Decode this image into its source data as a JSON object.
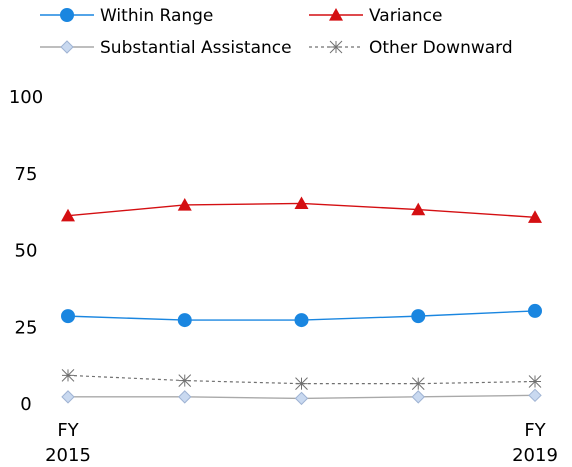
{
  "chart_data": {
    "type": "line",
    "title": "",
    "xlabel": "",
    "ylabel": "",
    "categories": [
      [
        "FY",
        "2015"
      ],
      [
        "",
        ""
      ],
      [
        "",
        ""
      ],
      [
        "",
        ""
      ],
      [
        "FY",
        "2019"
      ]
    ],
    "ylim": [
      0,
      100
    ],
    "yticks": [
      0,
      25,
      50,
      75,
      100
    ],
    "grid": false,
    "legend_position": "top",
    "series": [
      {
        "name": "Within Range",
        "values": [
          28.3,
          27.0,
          27.0,
          28.3,
          30.0
        ],
        "color": "#1a86e0",
        "marker": "circle",
        "dash": false
      },
      {
        "name": "Variance",
        "values": [
          61.0,
          64.5,
          65.0,
          63.0,
          60.5
        ],
        "color": "#d40f12",
        "marker": "triangle",
        "dash": false
      },
      {
        "name": "Substantial Assistance",
        "values": [
          2.0,
          2.0,
          1.5,
          2.0,
          2.5
        ],
        "color": "#a9a9a9",
        "marker": "diamond",
        "dash": false
      },
      {
        "name": "Other Downward",
        "values": [
          9.0,
          7.3,
          6.3,
          6.3,
          7.0
        ],
        "color": "#707070",
        "marker": "asterisk",
        "dash": true
      }
    ]
  }
}
